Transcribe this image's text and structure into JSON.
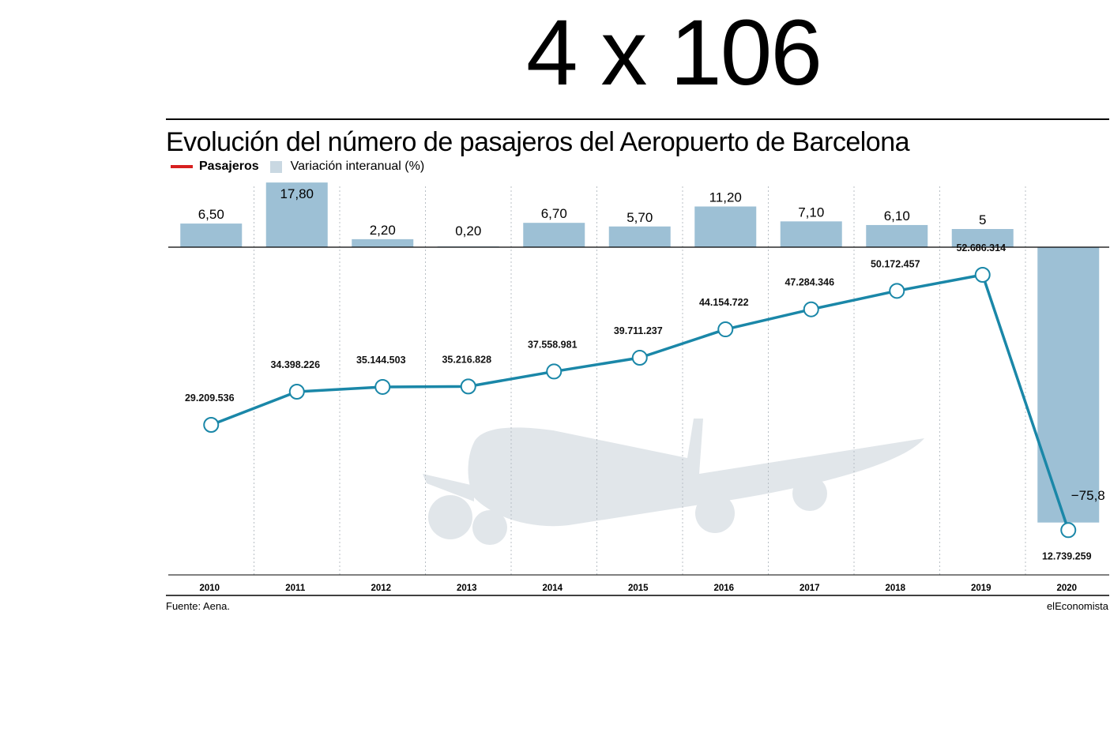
{
  "headline": "4 x 106",
  "chart_data": {
    "type": "bar+line",
    "title": "Evolución del número de pasajeros del Aeropuerto de Barcelona",
    "legend": [
      {
        "label": "Pasajeros",
        "color": "#d7201f",
        "kind": "line"
      },
      {
        "label": "Variación interanual (%)",
        "color": "#c9d8e2",
        "kind": "bar"
      }
    ],
    "categories": [
      "2010",
      "2011",
      "2012",
      "2013",
      "2014",
      "2015",
      "2016",
      "2017",
      "2018",
      "2019",
      "2020"
    ],
    "series": [
      {
        "name": "Pasajeros",
        "type": "line",
        "color": "#1a87a8",
        "values": [
          29209536,
          34398226,
          35144503,
          35216828,
          37558981,
          39711237,
          44154722,
          47284346,
          50172457,
          52686314,
          12739259
        ],
        "labels": [
          "29.209.536",
          "34.398.226",
          "35.144.503",
          "35.216.828",
          "37.558.981",
          "39.711.237",
          "44.154.722",
          "47.284.346",
          "50.172.457",
          "52.686.314",
          "12.739.259"
        ]
      },
      {
        "name": "Variación interanual (%)",
        "type": "bar",
        "color": "#9dc0d5",
        "values": [
          6.5,
          17.8,
          2.2,
          0.2,
          6.7,
          5.7,
          11.2,
          7.1,
          6.1,
          5,
          -75.8
        ],
        "labels": [
          "6,50",
          "17,80",
          "2,20",
          "0,20",
          "6,70",
          "5,70",
          "11,20",
          "7,10",
          "6,10",
          "5",
          "−75,8"
        ]
      }
    ],
    "grid": "vertical dotted"
  },
  "source": "Fuente: Aena.",
  "credit": "elEconomista"
}
